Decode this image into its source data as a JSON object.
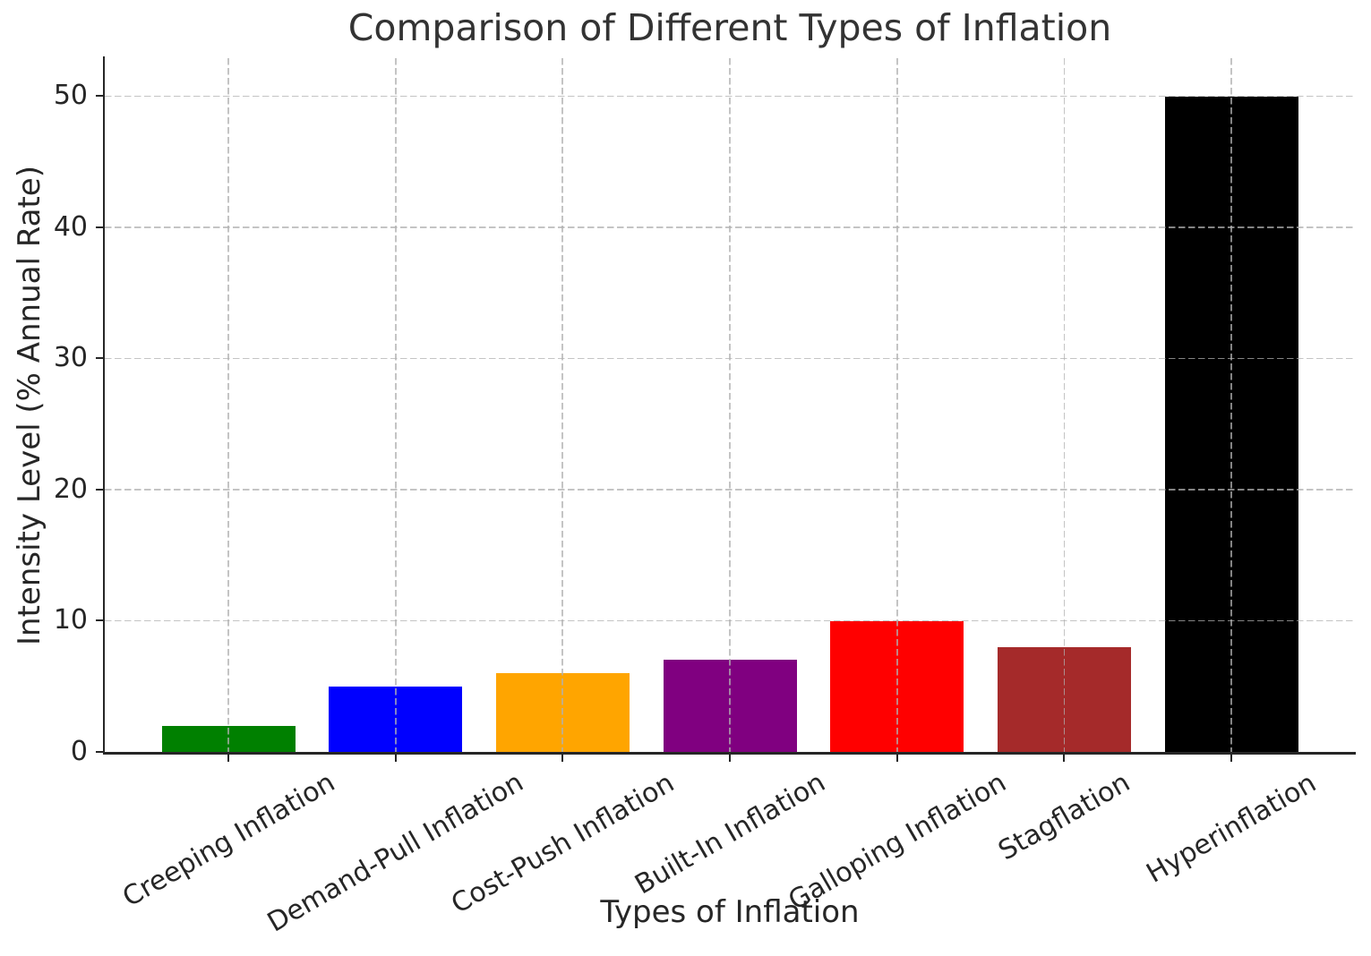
{
  "chart_data": {
    "type": "bar",
    "title": "Comparison of Different Types of Inflation",
    "xlabel": "Types of Inflation",
    "ylabel": "Intensity Level (% Annual Rate)",
    "categories": [
      "Creeping Inflation",
      "Demand-Pull Inflation",
      "Cost-Push Inflation",
      "Built-In Inflation",
      "Galloping Inflation",
      "Stagflation",
      "Hyperinflation"
    ],
    "values": [
      2,
      5,
      6,
      7,
      10,
      8,
      50
    ],
    "bar_colors": [
      "#008000",
      "#0000ff",
      "#ffa500",
      "#800080",
      "#ff0000",
      "#a52a2a",
      "#000000"
    ],
    "yticks": [
      0,
      10,
      20,
      30,
      40,
      50
    ],
    "ylim": [
      0,
      52.9
    ],
    "grid": true,
    "grid_style": "dashed",
    "grid_color": "#b0b0b0",
    "xtick_rotation_deg": 30,
    "legend": "none",
    "spine_color": "#262626",
    "title_color": "#333333",
    "text_color": "#262626"
  }
}
